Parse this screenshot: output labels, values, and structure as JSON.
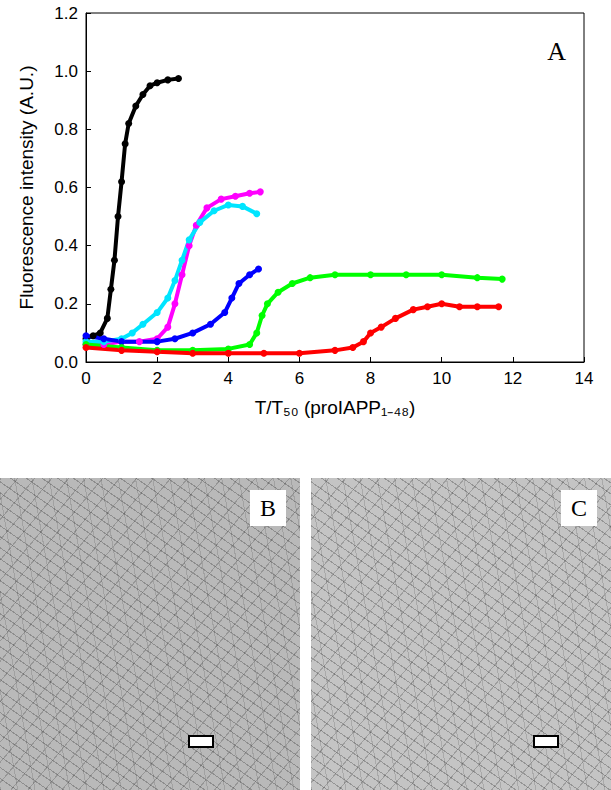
{
  "chart_data": {
    "type": "line",
    "marker": "circle",
    "grid": false,
    "xlabel": "T/T₅₀ (proIAPP₁₋₄₈)",
    "ylabel": "Fluorescence intensity (A.U.)",
    "annotation": "A",
    "xlim": [
      0,
      14
    ],
    "xticks": [
      0,
      2,
      4,
      6,
      8,
      10,
      12,
      14
    ],
    "ylim": [
      0,
      1.2
    ],
    "yticks": [
      {
        "value": 0,
        "label": "0.0"
      },
      0.2,
      0.4,
      0.6,
      0.8,
      {
        "value": 1,
        "label": "1.0"
      },
      1.2
    ],
    "series": [
      {
        "color": "#000000",
        "x": [
          0,
          0.2,
          0.4,
          0.6,
          0.7,
          0.8,
          0.9,
          1.0,
          1.1,
          1.2,
          1.4,
          1.6,
          1.8,
          2.0,
          2.3,
          2.6
        ],
        "values": [
          0.08,
          0.09,
          0.1,
          0.15,
          0.25,
          0.35,
          0.5,
          0.62,
          0.75,
          0.82,
          0.88,
          0.92,
          0.95,
          0.96,
          0.97,
          0.975
        ]
      },
      {
        "color": "#ff00ff",
        "x": [
          0,
          0.5,
          1,
          1.5,
          2,
          2.3,
          2.5,
          2.7,
          2.9,
          3.1,
          3.4,
          3.8,
          4.2,
          4.6,
          4.9
        ],
        "values": [
          0.06,
          0.06,
          0.07,
          0.07,
          0.08,
          0.12,
          0.2,
          0.3,
          0.4,
          0.47,
          0.53,
          0.56,
          0.57,
          0.58,
          0.585
        ]
      },
      {
        "color": "#00e5ff",
        "x": [
          0,
          0.5,
          1,
          1.3,
          1.6,
          2,
          2.3,
          2.5,
          2.7,
          2.9,
          3.2,
          3.6,
          4,
          4.4,
          4.8
        ],
        "values": [
          0.07,
          0.07,
          0.08,
          0.1,
          0.13,
          0.17,
          0.22,
          0.28,
          0.35,
          0.42,
          0.48,
          0.52,
          0.54,
          0.535,
          0.51
        ]
      },
      {
        "color": "#0000ff",
        "x": [
          0,
          0.5,
          1,
          2,
          2.5,
          3,
          3.5,
          3.9,
          4.1,
          4.3,
          4.6,
          4.85
        ],
        "values": [
          0.09,
          0.08,
          0.07,
          0.07,
          0.08,
          0.1,
          0.13,
          0.17,
          0.22,
          0.27,
          0.3,
          0.32
        ]
      },
      {
        "color": "#00ff00",
        "x": [
          0,
          1,
          2,
          3,
          4,
          4.6,
          4.8,
          4.95,
          5.1,
          5.4,
          5.8,
          6.3,
          7,
          8,
          9,
          10,
          11,
          11.7
        ],
        "values": [
          0.06,
          0.05,
          0.04,
          0.04,
          0.045,
          0.06,
          0.1,
          0.16,
          0.2,
          0.24,
          0.27,
          0.29,
          0.3,
          0.3,
          0.3,
          0.3,
          0.29,
          0.285
        ]
      },
      {
        "color": "#ff0000",
        "x": [
          0,
          1,
          2,
          3,
          4,
          5,
          6,
          7,
          7.5,
          7.8,
          8,
          8.3,
          8.7,
          9.2,
          9.6,
          10,
          10.5,
          11,
          11.6
        ],
        "values": [
          0.05,
          0.04,
          0.035,
          0.03,
          0.03,
          0.03,
          0.03,
          0.04,
          0.05,
          0.07,
          0.1,
          0.12,
          0.15,
          0.18,
          0.19,
          0.2,
          0.19,
          0.19,
          0.19
        ]
      }
    ]
  },
  "images": [
    {
      "label": "B"
    },
    {
      "label": "C"
    }
  ]
}
